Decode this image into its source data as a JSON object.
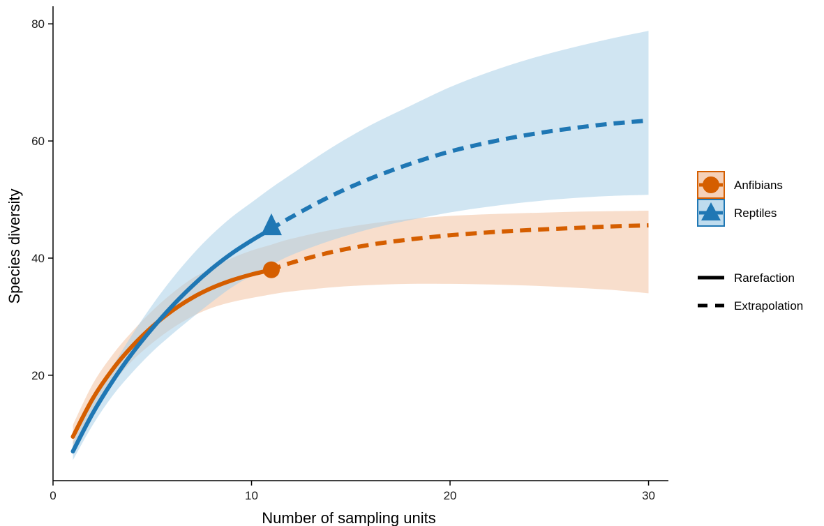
{
  "chart_data": {
    "type": "line",
    "title": "",
    "xlabel": "Number of sampling units",
    "ylabel": "Species diversity",
    "xlim": [
      0,
      31
    ],
    "ylim": [
      2,
      83
    ],
    "xticks": [
      0,
      10,
      20,
      30
    ],
    "yticks": [
      20,
      40,
      60,
      80
    ],
    "grid": false,
    "legend_position": "right",
    "series": [
      {
        "name": "Anfibians",
        "color": "#d55e00",
        "band_color": "#f2c2a2",
        "marker": "circle",
        "reference_point": {
          "x": 11,
          "y": 38
        },
        "rarefaction": {
          "x": [
            1,
            2,
            3,
            4,
            5,
            6,
            7,
            8,
            9,
            10,
            11
          ],
          "y": [
            9.5,
            16.0,
            21.0,
            25.0,
            28.3,
            31.0,
            33.2,
            34.9,
            36.2,
            37.2,
            38.0
          ]
        },
        "extrapolation": {
          "x": [
            11,
            12,
            14,
            16,
            18,
            20,
            22,
            24,
            26,
            28,
            30
          ],
          "y": [
            38.0,
            39.2,
            41.0,
            42.3,
            43.2,
            43.9,
            44.4,
            44.8,
            45.1,
            45.4,
            45.6
          ]
        },
        "ci_x": [
          1,
          2,
          3,
          4,
          5,
          6,
          7,
          8,
          9,
          10,
          11,
          12,
          14,
          16,
          18,
          20,
          22,
          24,
          26,
          28,
          30
        ],
        "ci_lower": [
          7.5,
          13.5,
          18.5,
          22.5,
          25.5,
          28.0,
          30.0,
          31.5,
          32.5,
          33.2,
          33.8,
          34.3,
          35.0,
          35.4,
          35.6,
          35.6,
          35.5,
          35.3,
          35.0,
          34.6,
          34.0
        ],
        "ci_upper": [
          11.5,
          18.5,
          23.5,
          27.5,
          31.0,
          34.0,
          36.5,
          38.3,
          40.0,
          41.3,
          42.3,
          43.3,
          44.8,
          45.9,
          46.7,
          47.2,
          47.5,
          47.7,
          47.9,
          48.0,
          48.1
        ]
      },
      {
        "name": "Reptiles",
        "color": "#1f77b4",
        "band_color": "#a9d0e8",
        "marker": "triangle",
        "reference_point": {
          "x": 11,
          "y": 45
        },
        "rarefaction": {
          "x": [
            1,
            2,
            3,
            4,
            5,
            6,
            7,
            8,
            9,
            10,
            11
          ],
          "y": [
            7.0,
            13.5,
            19.0,
            23.8,
            28.0,
            31.8,
            35.2,
            38.2,
            40.8,
            43.0,
            45.0
          ]
        },
        "extrapolation": {
          "x": [
            11,
            12,
            14,
            16,
            18,
            20,
            22,
            24,
            26,
            28,
            30
          ],
          "y": [
            45.0,
            47.0,
            50.6,
            53.6,
            56.1,
            58.2,
            59.8,
            61.1,
            62.1,
            62.9,
            63.5
          ]
        },
        "ci_x": [
          1,
          2,
          3,
          4,
          5,
          6,
          7,
          8,
          9,
          10,
          11,
          12,
          14,
          16,
          18,
          20,
          22,
          24,
          26,
          28,
          30
        ],
        "ci_lower": [
          5.5,
          11.5,
          16.5,
          20.5,
          24.0,
          27.0,
          29.8,
          32.5,
          35.0,
          37.0,
          38.8,
          40.5,
          43.0,
          45.0,
          46.5,
          47.8,
          48.8,
          49.6,
          50.2,
          50.6,
          50.8
        ],
        "ci_upper": [
          8.5,
          15.5,
          21.5,
          27.0,
          32.0,
          36.5,
          40.5,
          44.0,
          47.0,
          49.5,
          52.0,
          54.3,
          58.8,
          62.7,
          66.0,
          69.2,
          71.8,
          74.0,
          75.8,
          77.4,
          78.8
        ]
      }
    ],
    "method_legend": [
      {
        "label": "Rarefaction",
        "style": "solid"
      },
      {
        "label": "Extrapolation",
        "style": "dashed"
      }
    ]
  }
}
